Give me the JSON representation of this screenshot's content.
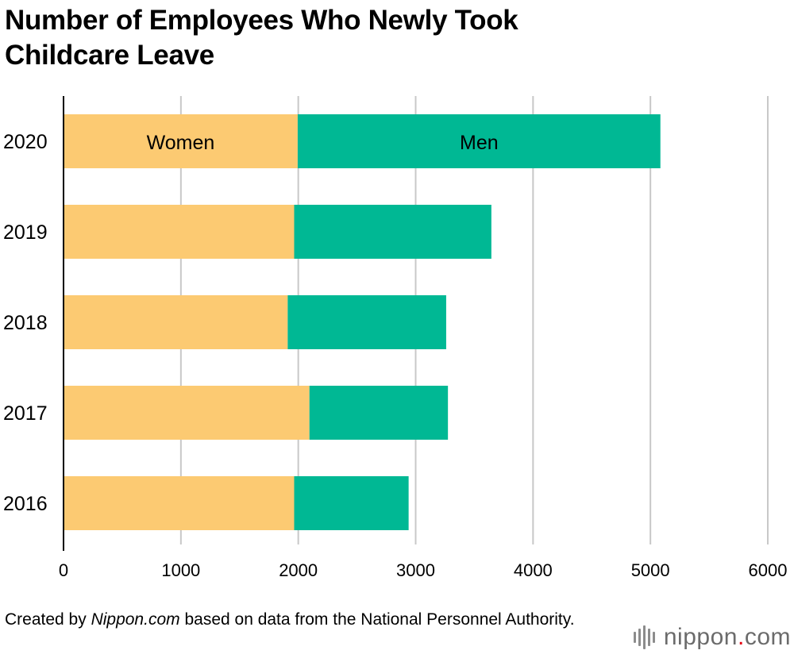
{
  "title_line1": "Number of Employees Who Newly Took",
  "title_line2": "Childcare Leave",
  "source": {
    "prefix": "Created by ",
    "site": "Nippon.com",
    "suffix": " based on data from the National Personnel Authority."
  },
  "logo": {
    "text": "nippon",
    "dot": ".",
    "tld": "com",
    "icon": "nippon-com-bars-icon"
  },
  "colors": {
    "women": "#fcca72",
    "men": "#00b894",
    "grid": "#c8c8c8",
    "axis": "#000000"
  },
  "chart_data": {
    "type": "bar",
    "orientation": "horizontal",
    "stacked": true,
    "categories": [
      "2020",
      "2019",
      "2018",
      "2017",
      "2016"
    ],
    "series": [
      {
        "name": "Women",
        "values": [
          1995,
          1965,
          1910,
          2095,
          1965
        ]
      },
      {
        "name": "Men",
        "values": [
          3090,
          1680,
          1350,
          1180,
          975
        ]
      }
    ],
    "xlim": [
      0,
      6000
    ],
    "xticks": [
      0,
      1000,
      2000,
      3000,
      4000,
      5000,
      6000
    ],
    "grid": true,
    "legend": "inline labels on 2020 bar"
  }
}
